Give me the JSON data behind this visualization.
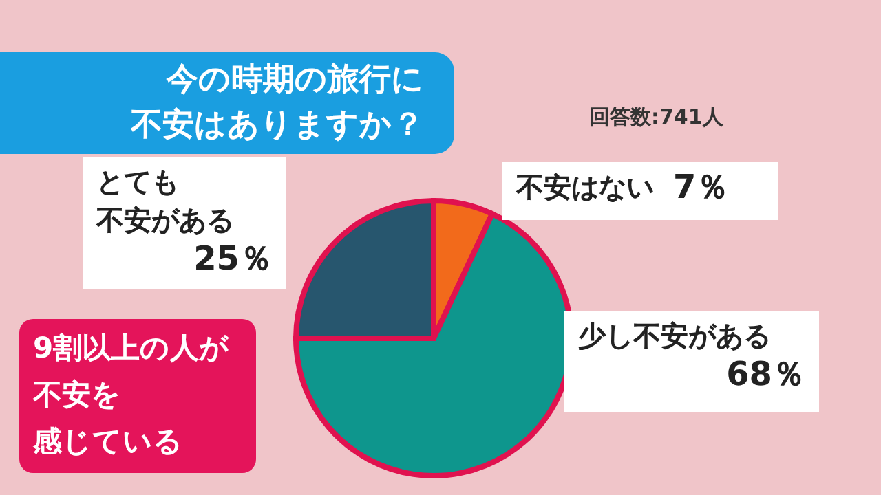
{
  "chart_data": {
    "type": "pie",
    "title": "今の時期の旅行に不安はありますか？",
    "categories": [
      "不安はない",
      "少し不安がある",
      "とても不安がある"
    ],
    "values": [
      7,
      68,
      25
    ],
    "colors": [
      "#f26a1b",
      "#0e968d",
      "#27566e"
    ],
    "value_labels": [
      "7％",
      "68％",
      "25％"
    ],
    "annotations": [
      "回答数:741人",
      "9割以上の人が不安を感じている"
    ]
  }
}
